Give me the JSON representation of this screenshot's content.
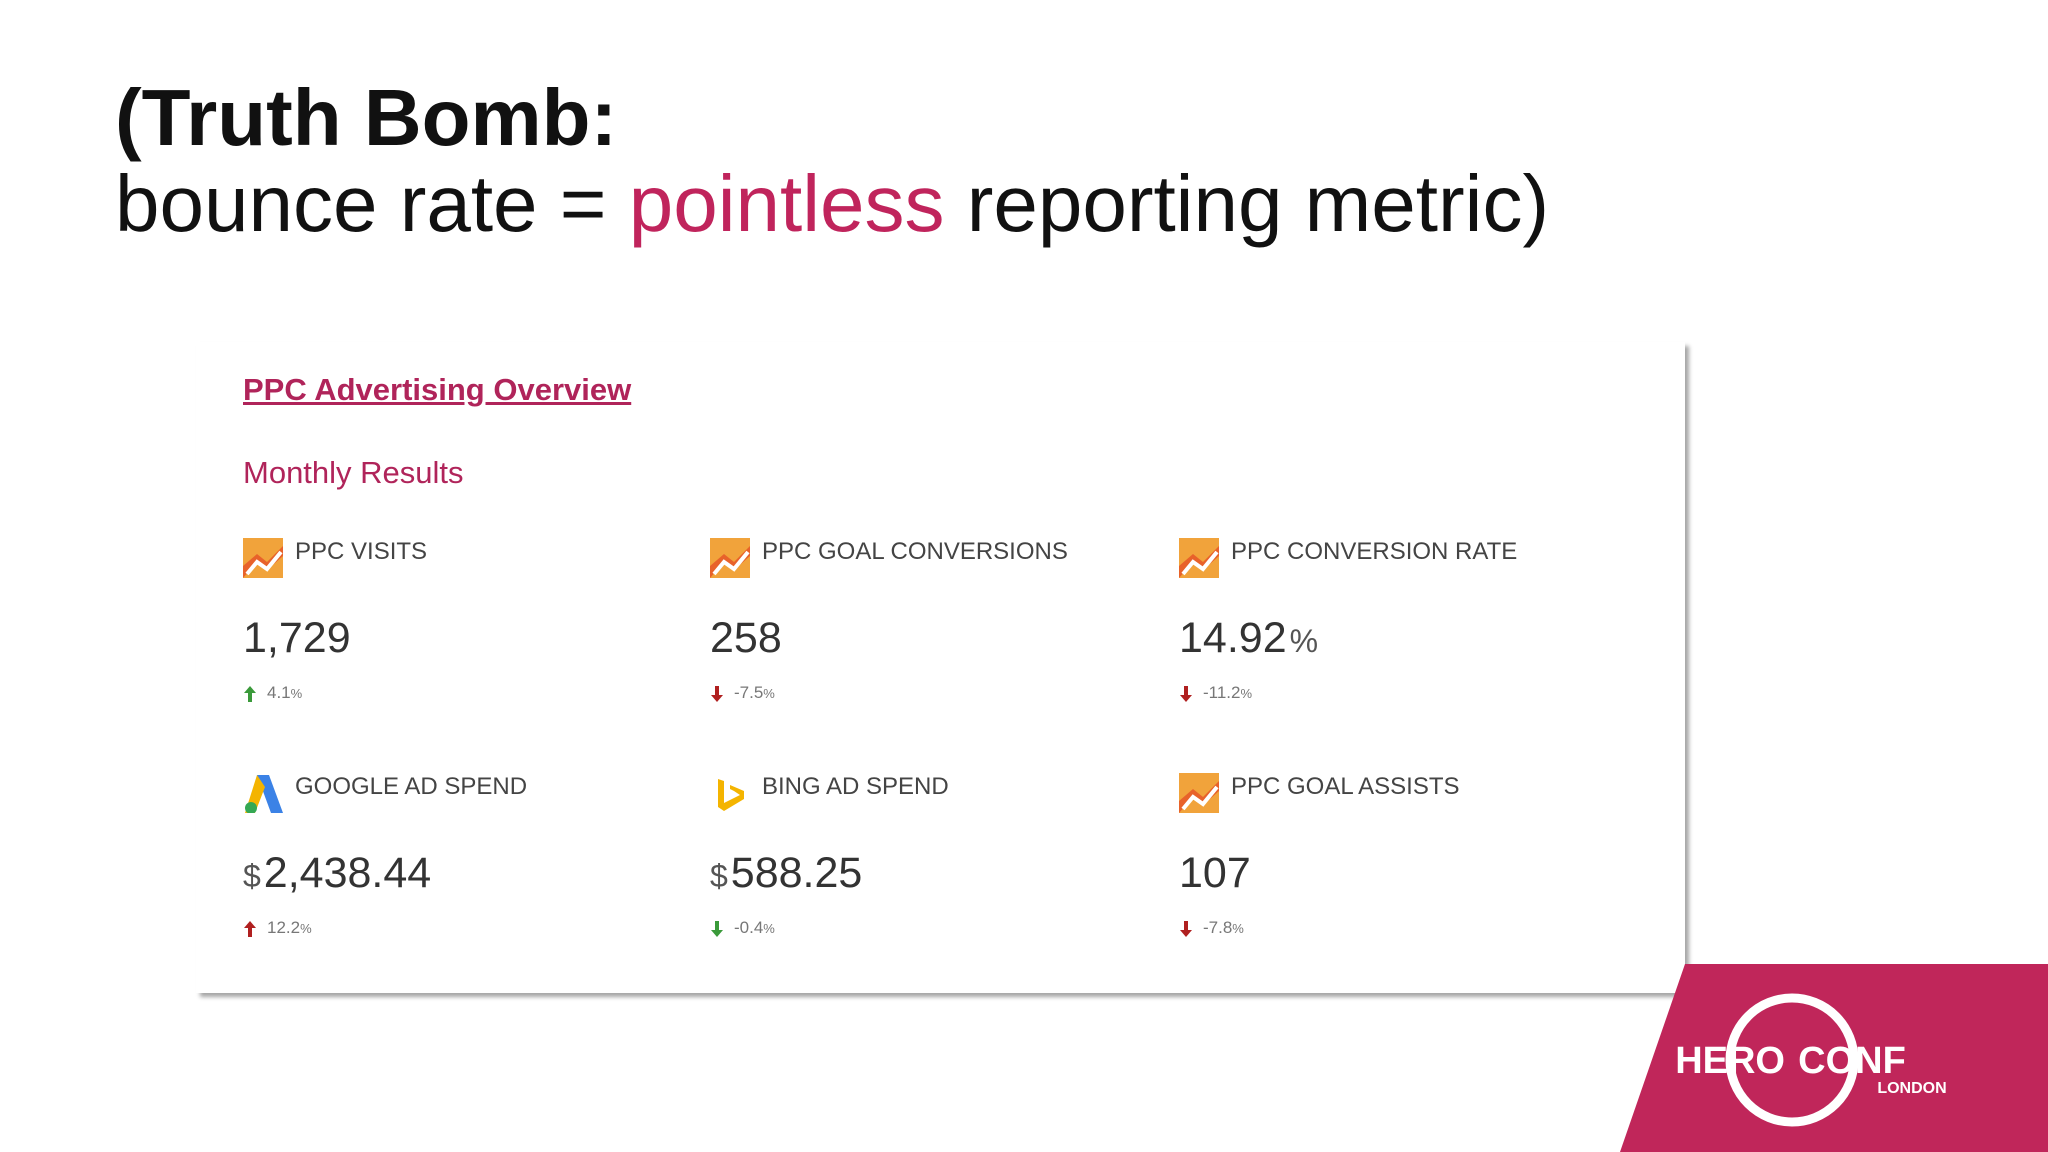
{
  "slide": {
    "title_line1": "(Truth Bomb:",
    "title_line2_start": "bounce rate = ",
    "title_line2_highlight": "pointless",
    "title_line2_end": " reporting metric)"
  },
  "dashboard": {
    "title": "PPC Advertising Overview",
    "subtitle": "Monthly Results",
    "metrics": [
      {
        "label": "PPC VISITS",
        "icon": "analytics",
        "prefix": "",
        "value": "1,729",
        "unit": "",
        "direction": "up",
        "change": "4.1",
        "change_unit": "%",
        "trend_color": "#3a9a3a"
      },
      {
        "label": "PPC GOAL CONVERSIONS",
        "icon": "analytics",
        "prefix": "",
        "value": "258",
        "unit": "",
        "direction": "down",
        "change": "-7.5",
        "change_unit": "%",
        "trend_color": "#b02020"
      },
      {
        "label": "PPC CONVERSION RATE",
        "icon": "analytics",
        "prefix": "",
        "value": "14.92",
        "unit": "%",
        "direction": "down",
        "change": "-11.2",
        "change_unit": "%",
        "trend_color": "#b02020"
      },
      {
        "label": "GOOGLE AD SPEND",
        "icon": "adwords",
        "prefix": "$",
        "value": "2,438.44",
        "unit": "",
        "direction": "up",
        "change": "12.2",
        "change_unit": "%",
        "trend_color": "#b02020"
      },
      {
        "label": "BING AD SPEND",
        "icon": "bing",
        "prefix": "$",
        "value": "588.25",
        "unit": "",
        "direction": "down",
        "change": "-0.4",
        "change_unit": "%",
        "trend_color": "#3a9a3a"
      },
      {
        "label": "PPC GOAL ASSISTS",
        "icon": "analytics",
        "prefix": "",
        "value": "107",
        "unit": "",
        "direction": "down",
        "change": "-7.8",
        "change_unit": "%",
        "trend_color": "#b02020"
      }
    ]
  },
  "logo": {
    "hero": "HERO",
    "conf": "CONF",
    "city": "LONDON"
  }
}
